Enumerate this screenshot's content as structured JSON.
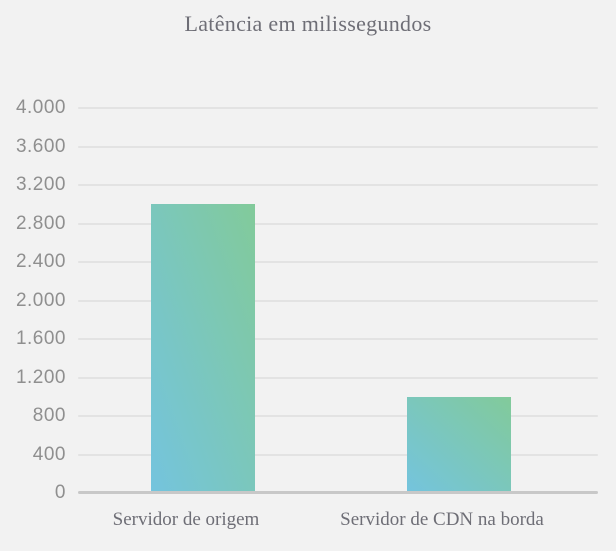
{
  "chart_data": {
    "type": "bar",
    "title": "Latência em milissegundos",
    "categories": [
      "Servidor de origem",
      "Servidor de CDN na borda"
    ],
    "values": [
      3000,
      1000
    ],
    "xlabel": "",
    "ylabel": "",
    "ylim": [
      0,
      4000
    ],
    "y_tick_step": 400,
    "y_tick_labels": [
      "0",
      "400",
      "800",
      "1.200",
      "1.600",
      "2.000",
      "2.400",
      "2.800",
      "3.200",
      "3.600",
      "4.000"
    ],
    "grid": "horizontal-only",
    "legend": "none",
    "bar_gradient": {
      "from": "#74c4de",
      "to": "#82ca9a"
    },
    "colors": {
      "background": "#f2f2f2",
      "gridline": "#e3e3e3",
      "axis_line": "#c8c8c8",
      "title_text": "#6e6e76",
      "y_label_text": "#8f8f8f",
      "x_label_text": "#6e6e76"
    }
  }
}
